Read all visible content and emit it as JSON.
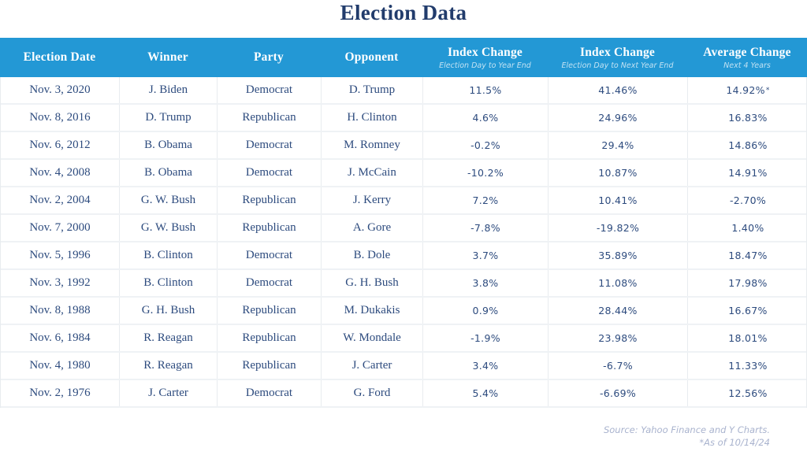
{
  "page": {
    "title": "Election Data"
  },
  "table": {
    "headers": [
      {
        "label": "Election Date",
        "sublabel": ""
      },
      {
        "label": "Winner",
        "sublabel": ""
      },
      {
        "label": "Party",
        "sublabel": ""
      },
      {
        "label": "Opponent",
        "sublabel": ""
      },
      {
        "label": "Index Change",
        "sublabel": "Election Day to Year End"
      },
      {
        "label": "Index Change",
        "sublabel": "Election Day to Next Year End"
      },
      {
        "label": "Average Change",
        "sublabel": "Next 4 Years"
      }
    ]
  },
  "chart_data": {
    "type": "table",
    "title": "Election Data",
    "columns": [
      "Election Date",
      "Winner",
      "Party",
      "Opponent",
      "Index Change (Election Day to Year End)",
      "Index Change (Election Day to Next Year End)",
      "Average Change (Next 4 Years)"
    ],
    "rows": [
      [
        "Nov. 3, 2020",
        "J. Biden",
        "Democrat",
        "D. Trump",
        "11.5%",
        "41.46%",
        "14.92%*"
      ],
      [
        "Nov. 8, 2016",
        "D. Trump",
        "Republican",
        "H. Clinton",
        "4.6%",
        "24.96%",
        "16.83%"
      ],
      [
        "Nov. 6, 2012",
        "B. Obama",
        "Democrat",
        "M. Romney",
        "-0.2%",
        "29.4%",
        "14.86%"
      ],
      [
        "Nov. 4, 2008",
        "B. Obama",
        "Democrat",
        "J. McCain",
        "-10.2%",
        "10.87%",
        "14.91%"
      ],
      [
        "Nov. 2, 2004",
        "G. W. Bush",
        "Republican",
        "J. Kerry",
        "7.2%",
        "10.41%",
        "-2.70%"
      ],
      [
        "Nov. 7, 2000",
        "G. W. Bush",
        "Republican",
        "A. Gore",
        "-7.8%",
        "-19.82%",
        "1.40%"
      ],
      [
        "Nov. 5, 1996",
        "B. Clinton",
        "Democrat",
        "B. Dole",
        "3.7%",
        "35.89%",
        "18.47%"
      ],
      [
        "Nov. 3, 1992",
        "B. Clinton",
        "Democrat",
        "G. H. Bush",
        "3.8%",
        "11.08%",
        "17.98%"
      ],
      [
        "Nov. 8, 1988",
        "G. H. Bush",
        "Republican",
        "M. Dukakis",
        "0.9%",
        "28.44%",
        "16.67%"
      ],
      [
        "Nov. 6, 1984",
        "R. Reagan",
        "Republican",
        "W. Mondale",
        "-1.9%",
        "23.98%",
        "18.01%"
      ],
      [
        "Nov. 4, 1980",
        "R. Reagan",
        "Republican",
        "J. Carter",
        "3.4%",
        "-6.7%",
        "11.33%"
      ],
      [
        "Nov. 2, 1976",
        "J. Carter",
        "Democrat",
        "G. Ford",
        "5.4%",
        "-6.69%",
        "12.56%"
      ]
    ]
  },
  "footer": {
    "source": "Source: Yahoo Finance and Y Charts.",
    "asterisk_note": "*As of 10/14/24"
  },
  "colors": {
    "header_bg": "#2398D5",
    "title_text": "#223C6C",
    "body_text": "#2D4B7E",
    "footer_text": "#A9B3CE",
    "grid_line": "#E8ECEF",
    "row_line": "#EFF2F5"
  }
}
